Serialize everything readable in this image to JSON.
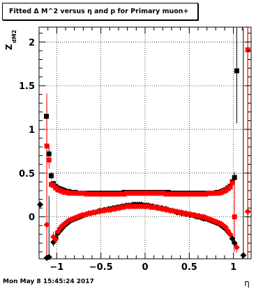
{
  "title": "Fitted Δ M^2 versus η and p for Primary muon+",
  "timestamp": "Mon May  8 15:45:24 2017",
  "chart_data": {
    "type": "scatter",
    "xlabel": "η",
    "ylabel": "Z",
    "ylabel_subscript": "dM2",
    "xlim": [
      -1.2,
      1.2
    ],
    "ylim": [
      -0.48,
      2.17
    ],
    "grid": true,
    "x_ticks": [
      -1,
      -0.5,
      0,
      0.5,
      1
    ],
    "x_tick_labels": [
      "−1",
      "−0.5",
      "0",
      "0.5",
      "1"
    ],
    "y_ticks": [
      0,
      0.5,
      1,
      1.5,
      2
    ],
    "y_tick_labels": [
      "0",
      "0.5",
      "1",
      "1.5",
      "2"
    ],
    "colors": {
      "black": "#000000",
      "red": "#ff0000"
    },
    "series": [
      {
        "marker": "square",
        "color": "#000000",
        "x": [
          -1.1167,
          -1.0875,
          -1.0625,
          -1.0375,
          -1.0125,
          -0.9875,
          -0.9625,
          -0.9375,
          -0.9125,
          -0.8875,
          -0.8625,
          -0.8375,
          -0.8125,
          -0.7875,
          -0.7625,
          -0.7375,
          -0.7125,
          -0.6875,
          -0.6625,
          -0.6375,
          -0.6125,
          -0.5875,
          -0.5625,
          -0.5375,
          -0.5125,
          -0.4875,
          -0.4625,
          -0.4375,
          -0.4125,
          -0.3875,
          -0.3625,
          -0.3375,
          -0.3125,
          -0.2875,
          -0.2625,
          -0.2375,
          -0.2125,
          -0.1875,
          -0.1625,
          -0.1375,
          -0.1125,
          -0.0875,
          -0.0625,
          -0.0375,
          -0.0125,
          0.0125,
          0.0375,
          0.0625,
          0.0875,
          0.1125,
          0.1375,
          0.1625,
          0.1875,
          0.2125,
          0.2375,
          0.2625,
          0.2875,
          0.3125,
          0.3375,
          0.3625,
          0.3875,
          0.4125,
          0.4375,
          0.4625,
          0.4875,
          0.5125,
          0.5375,
          0.5625,
          0.5875,
          0.6125,
          0.6375,
          0.6625,
          0.6875,
          0.7125,
          0.7375,
          0.7625,
          0.7875,
          0.8125,
          0.8375,
          0.8625,
          0.8875,
          0.9125,
          0.9375,
          0.9625,
          0.9875,
          1.0125,
          1.0375
        ],
        "y": [
          1.15,
          0.72,
          0.47,
          0.38,
          0.35,
          0.33,
          0.32,
          0.31,
          0.3,
          0.29,
          0.29,
          0.28,
          0.28,
          0.28,
          0.27,
          0.27,
          0.27,
          0.27,
          0.27,
          0.27,
          0.27,
          0.27,
          0.27,
          0.27,
          0.27,
          0.27,
          0.27,
          0.27,
          0.27,
          0.27,
          0.27,
          0.27,
          0.27,
          0.27,
          0.27,
          0.28,
          0.28,
          0.28,
          0.28,
          0.28,
          0.28,
          0.28,
          0.28,
          0.28,
          0.28,
          0.28,
          0.28,
          0.28,
          0.28,
          0.28,
          0.28,
          0.28,
          0.28,
          0.28,
          0.28,
          0.28,
          0.27,
          0.27,
          0.27,
          0.27,
          0.27,
          0.27,
          0.27,
          0.27,
          0.27,
          0.27,
          0.27,
          0.27,
          0.27,
          0.27,
          0.27,
          0.27,
          0.27,
          0.27,
          0.27,
          0.27,
          0.27,
          0.28,
          0.28,
          0.29,
          0.3,
          0.31,
          0.33,
          0.35,
          0.4,
          0.45,
          1.67
        ],
        "err": [
          0.0,
          0.1,
          0.04,
          0.03,
          0.02,
          0.02,
          0.015,
          0.015,
          0.015,
          0.015,
          0.015,
          0.015,
          0.015,
          0.015,
          0.015,
          0.015,
          0.015,
          0.015,
          0.015,
          0.015,
          0.015,
          0.015,
          0.015,
          0.015,
          0.015,
          0.015,
          0.015,
          0.015,
          0.015,
          0.015,
          0.015,
          0.015,
          0.015,
          0.015,
          0.015,
          0.015,
          0.015,
          0.015,
          0.015,
          0.015,
          0.015,
          0.015,
          0.015,
          0.015,
          0.015,
          0.015,
          0.015,
          0.015,
          0.015,
          0.015,
          0.015,
          0.015,
          0.015,
          0.015,
          0.015,
          0.015,
          0.015,
          0.015,
          0.015,
          0.015,
          0.015,
          0.015,
          0.015,
          0.015,
          0.015,
          0.015,
          0.015,
          0.015,
          0.015,
          0.015,
          0.015,
          0.015,
          0.015,
          0.015,
          0.015,
          0.015,
          0.015,
          0.015,
          0.015,
          0.015,
          0.015,
          0.02,
          0.02,
          0.03,
          0.04,
          0.06,
          0.6
        ]
      },
      {
        "marker": "diamond",
        "color": "#000000",
        "x": [
          -1.1875,
          -1.1125,
          -1.0875,
          -1.0375,
          -1.0125,
          -0.9875,
          -0.9625,
          -0.9375,
          -0.9125,
          -0.8875,
          -0.8625,
          -0.8375,
          -0.8125,
          -0.7875,
          -0.7625,
          -0.7375,
          -0.7125,
          -0.6875,
          -0.6625,
          -0.6375,
          -0.6125,
          -0.5875,
          -0.5625,
          -0.5375,
          -0.5125,
          -0.4875,
          -0.4625,
          -0.4375,
          -0.4125,
          -0.3875,
          -0.3625,
          -0.3375,
          -0.3125,
          -0.2875,
          -0.2625,
          -0.2375,
          -0.2125,
          -0.1875,
          -0.1625,
          -0.1375,
          -0.1125,
          -0.0875,
          -0.0625,
          -0.0375,
          -0.0125,
          0.0125,
          0.0375,
          0.0625,
          0.0875,
          0.1125,
          0.1375,
          0.1625,
          0.1875,
          0.2125,
          0.2375,
          0.2625,
          0.2875,
          0.3125,
          0.3375,
          0.3625,
          0.3875,
          0.4125,
          0.4375,
          0.4625,
          0.4875,
          0.5125,
          0.5375,
          0.5625,
          0.5875,
          0.6125,
          0.6375,
          0.6625,
          0.6875,
          0.7125,
          0.7375,
          0.7625,
          0.7875,
          0.8125,
          0.8375,
          0.8625,
          0.8875,
          0.9125,
          0.9375,
          0.9625,
          0.9875,
          1.0125,
          1.1125
        ],
        "y": [
          0.14,
          -0.47,
          -0.46,
          -0.29,
          -0.24,
          -0.19,
          -0.16,
          -0.13,
          -0.1,
          -0.08,
          -0.06,
          -0.04,
          -0.03,
          -0.02,
          -0.01,
          0.0,
          0.01,
          0.02,
          0.03,
          0.04,
          0.04,
          0.05,
          0.05,
          0.06,
          0.07,
          0.07,
          0.08,
          0.08,
          0.09,
          0.09,
          0.1,
          0.1,
          0.11,
          0.11,
          0.12,
          0.12,
          0.13,
          0.13,
          0.13,
          0.14,
          0.14,
          0.14,
          0.14,
          0.14,
          0.13,
          0.13,
          0.13,
          0.12,
          0.12,
          0.11,
          0.11,
          0.1,
          0.1,
          0.09,
          0.09,
          0.08,
          0.07,
          0.07,
          0.06,
          0.05,
          0.05,
          0.04,
          0.04,
          0.03,
          0.03,
          0.02,
          0.02,
          0.01,
          0.0,
          0.0,
          -0.01,
          -0.02,
          -0.02,
          -0.03,
          -0.04,
          -0.05,
          -0.06,
          -0.07,
          -0.08,
          -0.1,
          -0.12,
          -0.14,
          -0.17,
          -0.2,
          -0.25,
          -0.3,
          -0.44
        ],
        "err": [
          0.0,
          0.2,
          0.7,
          0.05,
          0.04,
          0.03,
          0.02,
          0.02,
          0.015,
          0.015,
          0.015,
          0.015,
          0.015,
          0.015,
          0.015,
          0.015,
          0.015,
          0.015,
          0.015,
          0.015,
          0.015,
          0.015,
          0.015,
          0.015,
          0.015,
          0.015,
          0.015,
          0.015,
          0.015,
          0.015,
          0.015,
          0.015,
          0.015,
          0.015,
          0.015,
          0.015,
          0.015,
          0.015,
          0.015,
          0.015,
          0.015,
          0.015,
          0.015,
          0.015,
          0.015,
          0.015,
          0.015,
          0.015,
          0.015,
          0.015,
          0.015,
          0.015,
          0.015,
          0.015,
          0.015,
          0.015,
          0.015,
          0.015,
          0.015,
          0.015,
          0.015,
          0.015,
          0.015,
          0.015,
          0.015,
          0.015,
          0.015,
          0.015,
          0.015,
          0.015,
          0.015,
          0.015,
          0.015,
          0.015,
          0.015,
          0.015,
          0.015,
          0.015,
          0.015,
          0.02,
          0.02,
          0.02,
          0.03,
          0.03,
          0.04,
          0.06,
          2.6
        ]
      },
      {
        "marker": "square",
        "color": "#ff0000",
        "x": [
          -1.1125,
          -1.0875,
          -1.0625,
          -1.0375,
          -1.0125,
          -0.9875,
          -0.9625,
          -0.9375,
          -0.9125,
          -0.8875,
          -0.8625,
          -0.8375,
          -0.8125,
          -0.7875,
          -0.7625,
          -0.7375,
          -0.7125,
          -0.6875,
          -0.6625,
          -0.6375,
          -0.6125,
          -0.5875,
          -0.5625,
          -0.5375,
          -0.5125,
          -0.4875,
          -0.4625,
          -0.4375,
          -0.4125,
          -0.3875,
          -0.3625,
          -0.3375,
          -0.3125,
          -0.2875,
          -0.2625,
          -0.2375,
          -0.2125,
          -0.1875,
          -0.1625,
          -0.1375,
          -0.1125,
          -0.0875,
          -0.0625,
          -0.0375,
          -0.0125,
          0.0125,
          0.0375,
          0.0625,
          0.0875,
          0.1125,
          0.1375,
          0.1625,
          0.1875,
          0.2125,
          0.2375,
          0.2625,
          0.2875,
          0.3125,
          0.3375,
          0.3625,
          0.3875,
          0.4125,
          0.4375,
          0.4625,
          0.4875,
          0.5125,
          0.5375,
          0.5625,
          0.5875,
          0.6125,
          0.6375,
          0.6625,
          0.6875,
          0.7125,
          0.7375,
          0.7625,
          0.7875,
          0.8125,
          0.8375,
          0.8625,
          0.8875,
          0.9125,
          0.9375,
          0.9625,
          0.9875,
          1.0125,
          1.1625
        ],
        "y": [
          0.81,
          0.65,
          0.37,
          0.36,
          0.33,
          0.31,
          0.3,
          0.29,
          0.28,
          0.28,
          0.27,
          0.27,
          0.27,
          0.27,
          0.27,
          0.27,
          0.27,
          0.27,
          0.26,
          0.26,
          0.26,
          0.26,
          0.26,
          0.26,
          0.26,
          0.26,
          0.26,
          0.26,
          0.26,
          0.26,
          0.26,
          0.26,
          0.26,
          0.26,
          0.26,
          0.26,
          0.27,
          0.27,
          0.27,
          0.27,
          0.27,
          0.27,
          0.27,
          0.27,
          0.27,
          0.27,
          0.27,
          0.27,
          0.27,
          0.27,
          0.27,
          0.27,
          0.27,
          0.27,
          0.26,
          0.26,
          0.26,
          0.26,
          0.26,
          0.26,
          0.26,
          0.26,
          0.26,
          0.26,
          0.26,
          0.26,
          0.26,
          0.26,
          0.26,
          0.26,
          0.26,
          0.26,
          0.26,
          0.27,
          0.27,
          0.27,
          0.27,
          0.27,
          0.27,
          0.28,
          0.29,
          0.3,
          0.32,
          0.34,
          0.39,
          0.0,
          1.91
        ],
        "err": [
          0.6,
          0.1,
          0.04,
          0.03,
          0.02,
          0.02,
          0.015,
          0.015,
          0.015,
          0.015,
          0.015,
          0.015,
          0.015,
          0.015,
          0.015,
          0.015,
          0.015,
          0.015,
          0.015,
          0.015,
          0.015,
          0.015,
          0.015,
          0.015,
          0.015,
          0.015,
          0.015,
          0.015,
          0.015,
          0.015,
          0.015,
          0.015,
          0.015,
          0.015,
          0.015,
          0.015,
          0.015,
          0.015,
          0.015,
          0.015,
          0.015,
          0.015,
          0.015,
          0.015,
          0.015,
          0.015,
          0.015,
          0.015,
          0.015,
          0.015,
          0.015,
          0.015,
          0.015,
          0.015,
          0.015,
          0.015,
          0.015,
          0.015,
          0.015,
          0.015,
          0.015,
          0.015,
          0.015,
          0.015,
          0.015,
          0.015,
          0.015,
          0.015,
          0.015,
          0.015,
          0.015,
          0.015,
          0.015,
          0.015,
          0.015,
          0.015,
          0.015,
          0.015,
          0.015,
          0.015,
          0.02,
          0.02,
          0.03,
          0.03,
          0.05,
          0.4,
          2.6
        ]
      },
      {
        "marker": "diamond",
        "color": "#ff0000",
        "x": [
          -1.1125,
          -1.0375,
          -1.0125,
          -0.9875,
          -0.9625,
          -0.9375,
          -0.9125,
          -0.8875,
          -0.8625,
          -0.8375,
          -0.8125,
          -0.7875,
          -0.7625,
          -0.7375,
          -0.7125,
          -0.6875,
          -0.6625,
          -0.6375,
          -0.6125,
          -0.5875,
          -0.5625,
          -0.5375,
          -0.5125,
          -0.4875,
          -0.4625,
          -0.4375,
          -0.4125,
          -0.3875,
          -0.3625,
          -0.3375,
          -0.3125,
          -0.2875,
          -0.2625,
          -0.2375,
          -0.2125,
          -0.1875,
          -0.1625,
          -0.1375,
          -0.1125,
          -0.0875,
          -0.0625,
          -0.0375,
          -0.0125,
          0.0125,
          0.0375,
          0.0625,
          0.0875,
          0.1125,
          0.1375,
          0.1625,
          0.1875,
          0.2125,
          0.2375,
          0.2625,
          0.2875,
          0.3125,
          0.3375,
          0.3625,
          0.3875,
          0.4125,
          0.4375,
          0.4625,
          0.4875,
          0.5125,
          0.5375,
          0.5625,
          0.5875,
          0.6125,
          0.6375,
          0.6625,
          0.6875,
          0.7125,
          0.7375,
          0.7625,
          0.7875,
          0.8125,
          0.8375,
          0.8625,
          0.8875,
          0.9125,
          0.9375,
          0.9625,
          1.0375,
          1.1625
        ],
        "y": [
          -0.09,
          -0.23,
          -0.26,
          -0.17,
          -0.13,
          -0.1,
          -0.08,
          -0.06,
          -0.04,
          -0.03,
          -0.02,
          -0.01,
          0.0,
          0.01,
          0.02,
          0.02,
          0.03,
          0.04,
          0.04,
          0.05,
          0.05,
          0.06,
          0.06,
          0.07,
          0.07,
          0.08,
          0.08,
          0.08,
          0.09,
          0.09,
          0.1,
          0.1,
          0.11,
          0.11,
          0.12,
          0.12,
          0.12,
          0.12,
          0.12,
          0.12,
          0.12,
          0.12,
          0.12,
          0.12,
          0.12,
          0.11,
          0.11,
          0.11,
          0.1,
          0.1,
          0.09,
          0.09,
          0.08,
          0.08,
          0.07,
          0.07,
          0.06,
          0.06,
          0.05,
          0.05,
          0.04,
          0.04,
          0.03,
          0.03,
          0.02,
          0.02,
          0.01,
          0.01,
          0.0,
          0.0,
          -0.01,
          -0.02,
          -0.03,
          -0.04,
          -0.05,
          -0.06,
          -0.07,
          -0.08,
          -0.1,
          -0.12,
          -0.16,
          -0.2,
          -0.35,
          0.06
        ],
        "err": [
          1.4,
          0.06,
          0.04,
          0.03,
          0.02,
          0.02,
          0.015,
          0.015,
          0.015,
          0.015,
          0.015,
          0.015,
          0.015,
          0.015,
          0.015,
          0.015,
          0.015,
          0.015,
          0.015,
          0.015,
          0.015,
          0.015,
          0.015,
          0.015,
          0.015,
          0.015,
          0.015,
          0.015,
          0.015,
          0.015,
          0.015,
          0.015,
          0.015,
          0.015,
          0.015,
          0.015,
          0.015,
          0.015,
          0.015,
          0.015,
          0.015,
          0.015,
          0.015,
          0.015,
          0.015,
          0.015,
          0.015,
          0.015,
          0.015,
          0.015,
          0.015,
          0.015,
          0.015,
          0.015,
          0.015,
          0.015,
          0.015,
          0.015,
          0.015,
          0.015,
          0.015,
          0.015,
          0.015,
          0.015,
          0.015,
          0.015,
          0.015,
          0.015,
          0.015,
          0.015,
          0.015,
          0.015,
          0.015,
          0.015,
          0.015,
          0.015,
          0.015,
          0.015,
          0.02,
          0.02,
          0.03,
          0.03,
          0.06,
          2.6
        ]
      }
    ]
  }
}
